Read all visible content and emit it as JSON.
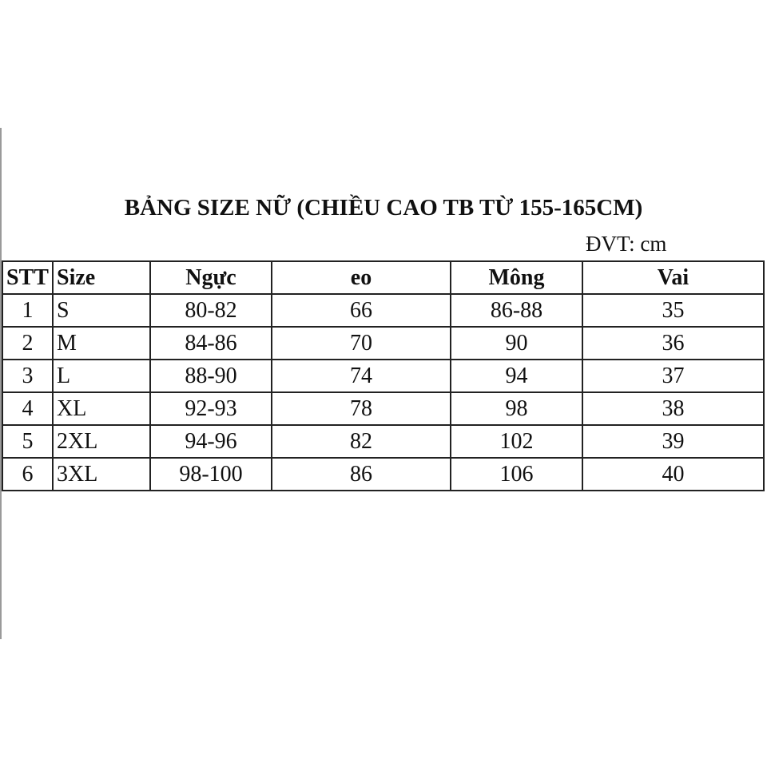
{
  "title": "BẢNG SIZE NỮ (CHIỀU CAO TB TỪ 155-165CM)",
  "unit": "ĐVT: cm",
  "table": {
    "headers": [
      "STT",
      "Size",
      "Ngực",
      "eo",
      "Mông",
      "Vai"
    ],
    "rows": [
      [
        "1",
        "S",
        "80-82",
        "66",
        "86-88",
        "35"
      ],
      [
        "2",
        "M",
        "84-86",
        "70",
        "90",
        "36"
      ],
      [
        "3",
        "L",
        "88-90",
        "74",
        "94",
        "37"
      ],
      [
        "4",
        "XL",
        "92-93",
        "78",
        "98",
        "38"
      ],
      [
        "5",
        "2XL",
        "94-96",
        "82",
        "102",
        "39"
      ],
      [
        "6",
        "3XL",
        "98-100",
        "86",
        "106",
        "40"
      ]
    ]
  }
}
